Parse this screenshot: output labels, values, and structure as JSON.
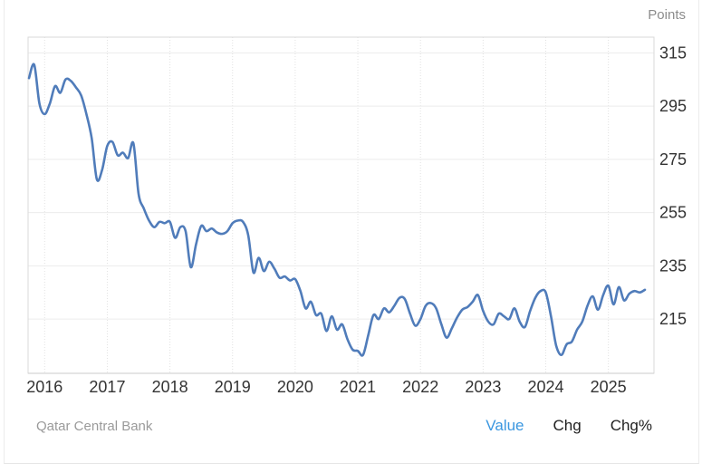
{
  "widget": {
    "units_label": "Points"
  },
  "footer": {
    "source_label": "Qatar Central Bank",
    "modes": [
      {
        "label": "Value",
        "active": true
      },
      {
        "label": "Chg",
        "active": false
      },
      {
        "label": "Chg%",
        "active": false
      }
    ]
  },
  "colors": {
    "line": "#507cba",
    "grid_h": "#ececec",
    "grid_v": "#e2e2e2",
    "plot_border": "#d9d9d9",
    "axis_line": "#cbcbcb",
    "axis_text": "#333333",
    "units_text": "#8c8c8c",
    "source_text": "#9a9a9a",
    "mode_active": "#3b97e0",
    "mode_inactive": "#212121"
  },
  "chart_data": {
    "type": "line",
    "title": "",
    "ylabel": "Points",
    "xlabel": "",
    "grid": true,
    "legend_position": "none",
    "x_start": "2015-10",
    "x_interval": "month",
    "x_tick_labels": [
      "2016",
      "2017",
      "2018",
      "2019",
      "2020",
      "2021",
      "2022",
      "2023",
      "2024",
      "2025"
    ],
    "y_ticks": [
      215,
      235,
      255,
      275,
      295,
      315
    ],
    "ylim": [
      194.6,
      320.9
    ],
    "series": [
      {
        "name": "Value",
        "values": [
          305.5,
          310.5,
          296,
          292,
          296,
          302.5,
          300,
          305,
          304.5,
          302,
          299,
          292,
          283,
          267.5,
          271,
          280,
          281.5,
          276.5,
          277.5,
          275.5,
          281,
          262,
          256.5,
          252,
          249.5,
          251.5,
          251,
          251.5,
          245.5,
          249.5,
          248,
          234.5,
          243,
          250,
          248,
          249,
          247.5,
          247,
          248,
          251,
          252,
          251.5,
          246.5,
          232.5,
          238,
          233,
          236.5,
          234,
          230.5,
          231,
          229.5,
          230,
          225.5,
          219,
          221.5,
          216.5,
          217,
          210.5,
          216,
          211,
          213,
          207.5,
          203.5,
          203,
          201.5,
          209,
          216.5,
          215,
          219,
          217.5,
          220,
          223,
          222.5,
          217,
          212.5,
          215,
          220,
          221,
          219,
          213,
          208,
          211.5,
          215.5,
          218.5,
          219.5,
          221.5,
          224,
          218,
          214,
          213,
          217,
          216,
          215,
          219,
          214,
          212,
          218,
          223,
          225.5,
          225,
          216,
          205,
          201.5,
          205.5,
          206.5,
          211,
          214,
          220,
          223.5,
          218.5,
          224,
          227.5,
          220.5,
          227,
          222,
          224.5,
          225.5,
          225,
          226
        ]
      }
    ],
    "source": "Qatar Central Bank"
  }
}
